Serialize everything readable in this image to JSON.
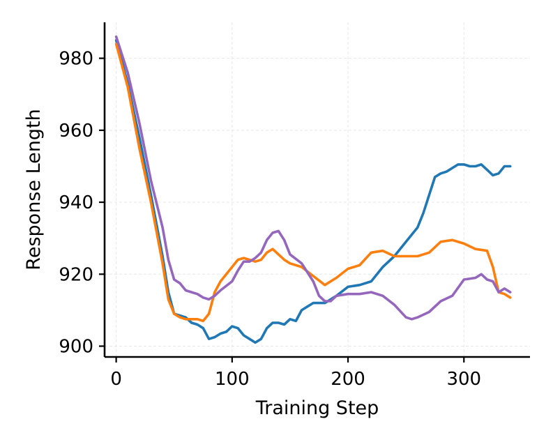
{
  "chart_data": {
    "type": "line",
    "title": "",
    "xlabel": "Training Step",
    "ylabel": "Response Length",
    "xlim": [
      -10,
      357
    ],
    "ylim": [
      897,
      990
    ],
    "x_ticks": [
      0,
      100,
      200,
      300
    ],
    "y_ticks": [
      900,
      920,
      940,
      960,
      980
    ],
    "grid": true,
    "legend": "none",
    "series": [
      {
        "color": "#1f77b4",
        "x": [
          0,
          10,
          20,
          30,
          40,
          45,
          50,
          55,
          60,
          65,
          70,
          75,
          80,
          85,
          90,
          95,
          100,
          105,
          110,
          115,
          120,
          125,
          130,
          135,
          140,
          145,
          150,
          155,
          160,
          165,
          170,
          180,
          190,
          200,
          210,
          220,
          230,
          240,
          250,
          260,
          265,
          270,
          275,
          280,
          285,
          290,
          295,
          300,
          305,
          310,
          315,
          320,
          325,
          330,
          335,
          340
        ],
        "y": [
          985,
          973,
          958,
          942,
          925,
          915,
          909,
          908.5,
          908,
          906.5,
          906,
          905,
          902,
          902.5,
          903.5,
          904,
          905.5,
          905,
          903,
          902,
          901,
          902,
          905,
          906.5,
          906.5,
          906,
          907.5,
          907,
          910,
          911,
          912,
          912,
          914,
          916.5,
          917,
          918,
          922,
          925,
          929,
          933,
          937,
          942,
          947,
          948,
          948.5,
          949.5,
          950.5,
          950.5,
          950,
          950,
          950.5,
          949,
          947.5,
          948,
          950,
          950
        ]
      },
      {
        "color": "#ff7f0e",
        "x": [
          0,
          10,
          20,
          30,
          40,
          45,
          50,
          55,
          60,
          65,
          70,
          75,
          80,
          85,
          90,
          100,
          105,
          110,
          115,
          120,
          125,
          130,
          135,
          140,
          145,
          150,
          160,
          170,
          180,
          185,
          190,
          200,
          210,
          220,
          230,
          240,
          250,
          260,
          270,
          280,
          290,
          300,
          310,
          320,
          325,
          330,
          335,
          340
        ],
        "y": [
          984,
          972,
          955,
          940,
          923,
          913,
          909,
          908,
          907.5,
          907.5,
          907.5,
          907,
          909,
          915,
          918,
          922,
          924,
          924.5,
          924,
          923.5,
          924,
          926,
          927,
          925.5,
          924,
          923,
          922,
          919.5,
          917,
          918,
          919,
          921.5,
          922.5,
          926,
          926.5,
          925,
          925,
          925,
          926,
          929,
          929.5,
          928.5,
          927,
          926.5,
          922,
          915,
          914.5,
          913.5
        ]
      },
      {
        "color": "#9467bd",
        "x": [
          0,
          10,
          20,
          30,
          40,
          45,
          50,
          55,
          60,
          65,
          70,
          75,
          80,
          85,
          90,
          100,
          105,
          110,
          115,
          120,
          125,
          130,
          135,
          140,
          145,
          150,
          160,
          170,
          175,
          180,
          185,
          190,
          200,
          210,
          220,
          230,
          240,
          250,
          255,
          260,
          270,
          280,
          290,
          300,
          310,
          315,
          320,
          325,
          330,
          335,
          340
        ],
        "y": [
          986,
          976,
          962,
          946,
          933,
          924,
          918.5,
          917.5,
          915.5,
          915,
          914.5,
          913.5,
          913,
          914,
          915.5,
          918,
          921,
          923.5,
          923.5,
          924.5,
          926,
          929.5,
          931.5,
          932,
          929.5,
          925.5,
          923,
          918,
          914,
          912.5,
          912.5,
          914,
          914.5,
          914.5,
          915,
          914,
          911.5,
          908,
          907.5,
          908,
          909.5,
          912.5,
          914,
          918.5,
          919,
          920,
          918.5,
          918,
          915,
          916,
          915
        ]
      }
    ]
  }
}
